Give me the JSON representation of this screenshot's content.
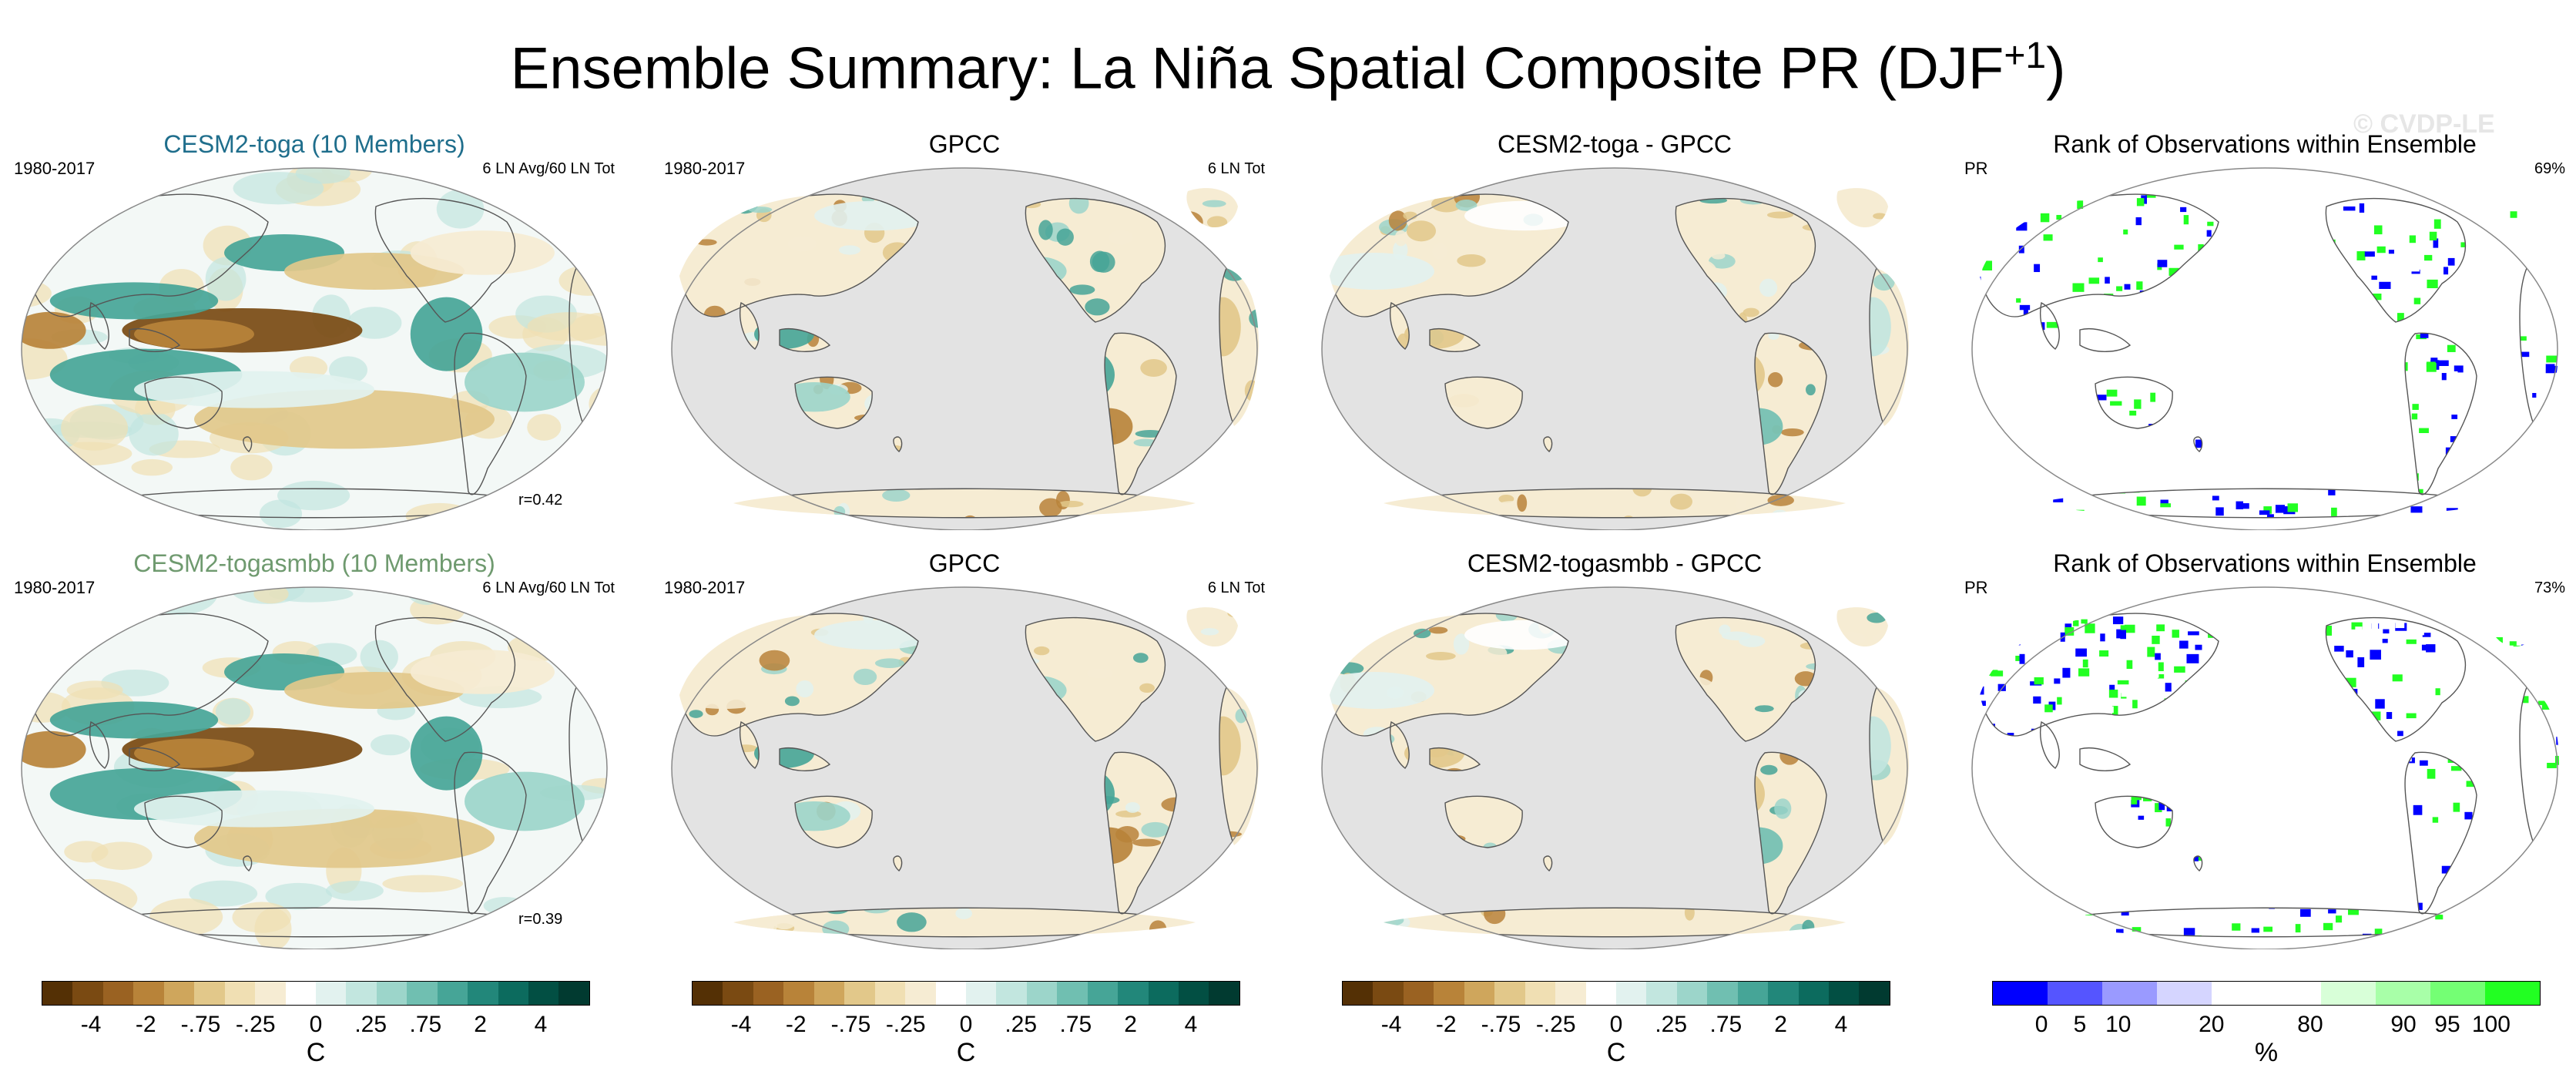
{
  "title": {
    "main": "Ensemble Summary: La Niña Spatial Composite PR (DJF",
    "sup": "+1",
    "close": ")"
  },
  "watermark": "© CVDP-LE",
  "panels": [
    {
      "title": "CESM2-toga (10 Members)",
      "title_color": "#1f6e8c",
      "left": "1980-2017",
      "right": "6 LN Avg/60 LN Tot",
      "corr": "r=0.42",
      "kind": "model"
    },
    {
      "title": "GPCC",
      "title_color": "#000000",
      "left": "1980-2017",
      "right": "6 LN Tot",
      "corr": "",
      "kind": "obs"
    },
    {
      "title": "CESM2-toga - GPCC",
      "title_color": "#000000",
      "left": "",
      "right": "",
      "corr": "",
      "kind": "diff"
    },
    {
      "title": "Rank of Observations within Ensemble",
      "title_color": "#000000",
      "left": "PR",
      "right": "69%",
      "corr": "",
      "kind": "rank"
    },
    {
      "title": "CESM2-togasmbb (10 Members)",
      "title_color": "#6f9a6f",
      "left": "1980-2017",
      "right": "6 LN Avg/60 LN Tot",
      "corr": "r=0.39",
      "kind": "model"
    },
    {
      "title": "GPCC",
      "title_color": "#000000",
      "left": "1980-2017",
      "right": "6 LN Tot",
      "corr": "",
      "kind": "obs"
    },
    {
      "title": "CESM2-togasmbb - GPCC",
      "title_color": "#000000",
      "left": "",
      "right": "",
      "corr": "",
      "kind": "diff"
    },
    {
      "title": "Rank of Observations within Ensemble",
      "title_color": "#000000",
      "left": "PR",
      "right": "73%",
      "corr": "",
      "kind": "rank"
    }
  ],
  "colorbars": [
    {
      "unit": "C",
      "ticks": [
        "-4",
        "-2",
        "-.75",
        "-.25",
        "0",
        ".25",
        ".75",
        "2",
        "4"
      ],
      "kind": "brbg"
    },
    {
      "unit": "C",
      "ticks": [
        "-4",
        "-2",
        "-.75",
        "-.25",
        "0",
        ".25",
        ".75",
        "2",
        "4"
      ],
      "kind": "brbg"
    },
    {
      "unit": "C",
      "ticks": [
        "-4",
        "-2",
        "-.75",
        "-.25",
        "0",
        ".25",
        ".75",
        "2",
        "4"
      ],
      "kind": "brbg"
    },
    {
      "unit": "%",
      "ticks": [
        "0",
        "5",
        "10",
        "20",
        "80",
        "90",
        "95",
        "100"
      ],
      "kind": "rank"
    }
  ],
  "colors": {
    "brbg": [
      "#543005",
      "#7a4a12",
      "#9a6222",
      "#b88339",
      "#cfa65c",
      "#e2c88a",
      "#f0dfb3",
      "#f6ecd3",
      "#ffffff",
      "#e2f2ef",
      "#c2e6df",
      "#9cd5ca",
      "#70bfb1",
      "#46a597",
      "#22877a",
      "#0c6b5e",
      "#024f43",
      "#013a30"
    ],
    "rank": [
      "#0000ff",
      "#5555ff",
      "#9a9aff",
      "#d5d5ff",
      "#ffffff",
      "#ffffff",
      "#d8ffd8",
      "#a8ffa8",
      "#74ff74",
      "#22ff22"
    ],
    "ocean_gray": "#e3e3e3",
    "coast": "#555555"
  }
}
